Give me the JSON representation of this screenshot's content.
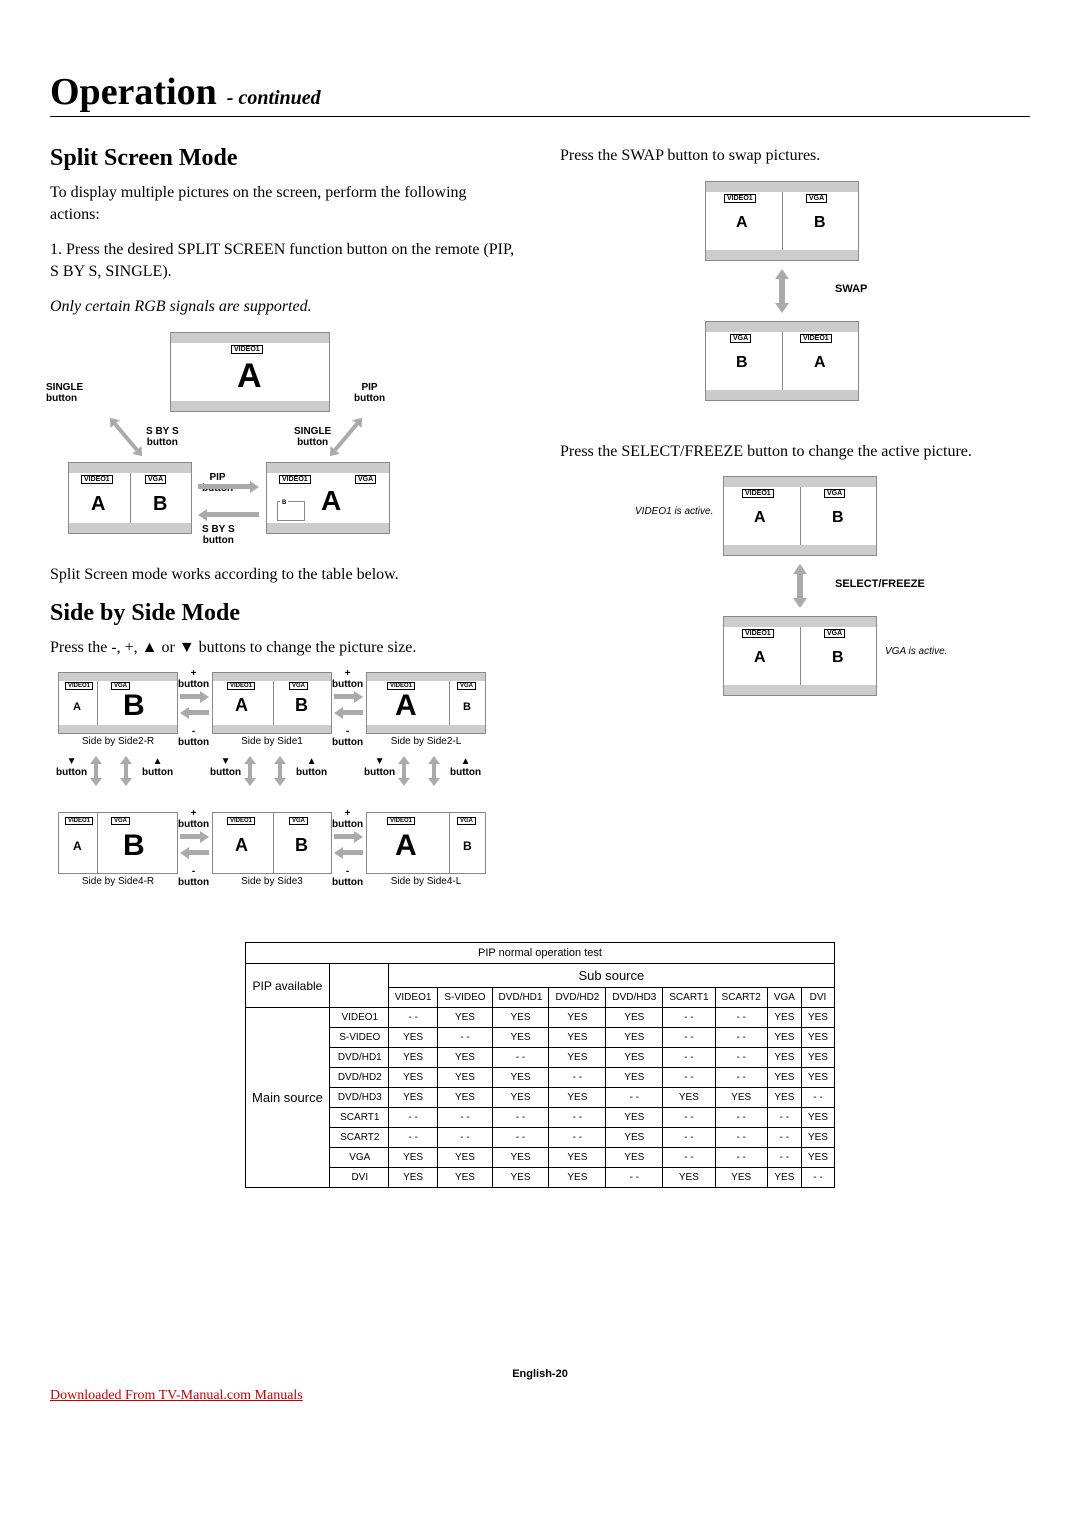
{
  "page": {
    "title_main": "Operation",
    "title_continued": "- continued",
    "footer": "English-20",
    "download_link": "Downloaded From TV-Manual.com Manuals"
  },
  "left": {
    "h_split": "Split Screen Mode",
    "p1": "To display multiple pictures on the screen, perform the following actions:",
    "p2": "1. Press the desired SPLIT SCREEN function button on the remote (PIP, S BY S, SINGLE).",
    "p3": "Only certain RGB signals are supported.",
    "p4": "Split Screen mode works according to the table below.",
    "h_sbs": "Side by Side Mode",
    "p5": "Press the -, +, ▲ or ▼ buttons to change the picture size."
  },
  "right": {
    "p_swap": "Press the SWAP button to swap pictures.",
    "p_select": "Press the SELECT/FREEZE button to change the active picture.",
    "swap_label": "SWAP",
    "select_label": "SELECT/FREEZE",
    "video1_active": "VIDEO1 is active.",
    "vga_active": "VGA is active."
  },
  "diag1": {
    "labels": {
      "single": "SINGLE\nbutton",
      "pip": "PIP\nbutton",
      "sbys": "S BY S\nbutton"
    },
    "tags": {
      "video1": "VIDEO1",
      "vga": "VGA",
      "b": "B"
    },
    "letters": {
      "A": "A",
      "B": "B"
    }
  },
  "sbs": {
    "plus": "+\nbutton",
    "minus": "-\nbutton",
    "up": "▲\nbutton",
    "down": "▼\nbutton",
    "captions": {
      "r1c1": "Side by Side2-R",
      "r1c2": "Side by Side1",
      "r1c3": "Side by Side2-L",
      "r2c1": "Side by Side4-R",
      "r2c2": "Side by Side3",
      "r2c3": "Side by Side4-L"
    },
    "tags": {
      "video1": "VIDEO1",
      "vga": "VGA"
    }
  },
  "table": {
    "title": "PIP normal operation test",
    "pip_available": "PIP available",
    "sub_source": "Sub source",
    "main_source": "Main source",
    "columns": [
      "VIDEO1",
      "S-VIDEO",
      "DVD/HD1",
      "DVD/HD2",
      "DVD/HD3",
      "SCART1",
      "SCART2",
      "VGA",
      "DVI"
    ],
    "rows": [
      {
        "label": "VIDEO1",
        "cells": [
          "- -",
          "YES",
          "YES",
          "YES",
          "YES",
          "- -",
          "- -",
          "YES",
          "YES"
        ]
      },
      {
        "label": "S-VIDEO",
        "cells": [
          "YES",
          "- -",
          "YES",
          "YES",
          "YES",
          "- -",
          "- -",
          "YES",
          "YES"
        ]
      },
      {
        "label": "DVD/HD1",
        "cells": [
          "YES",
          "YES",
          "- -",
          "YES",
          "YES",
          "- -",
          "- -",
          "YES",
          "YES"
        ]
      },
      {
        "label": "DVD/HD2",
        "cells": [
          "YES",
          "YES",
          "YES",
          "- -",
          "YES",
          "- -",
          "- -",
          "YES",
          "YES"
        ]
      },
      {
        "label": "DVD/HD3",
        "cells": [
          "YES",
          "YES",
          "YES",
          "YES",
          "- -",
          "YES",
          "YES",
          "YES",
          "- -"
        ]
      },
      {
        "label": "SCART1",
        "cells": [
          "- -",
          "- -",
          "- -",
          "- -",
          "YES",
          "- -",
          "- -",
          "- -",
          "YES"
        ]
      },
      {
        "label": "SCART2",
        "cells": [
          "- -",
          "- -",
          "- -",
          "- -",
          "YES",
          "- -",
          "- -",
          "- -",
          "YES"
        ]
      },
      {
        "label": "VGA",
        "cells": [
          "YES",
          "YES",
          "YES",
          "YES",
          "YES",
          "- -",
          "- -",
          "- -",
          "YES"
        ]
      },
      {
        "label": "DVI",
        "cells": [
          "YES",
          "YES",
          "YES",
          "YES",
          "- -",
          "YES",
          "YES",
          "YES",
          "- -"
        ]
      }
    ]
  }
}
